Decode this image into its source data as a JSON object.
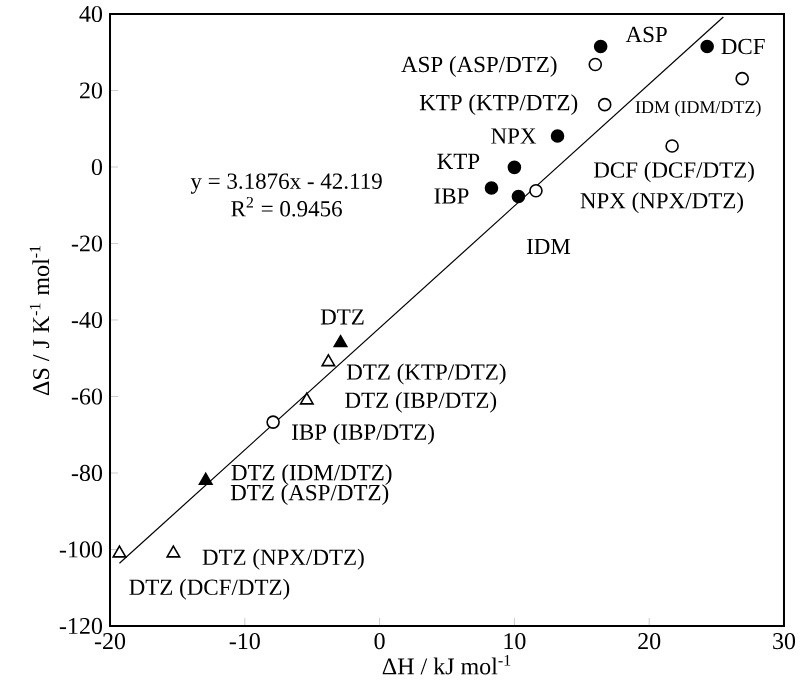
{
  "chart_data": {
    "type": "scatter",
    "xlabel": "ΔH / kJ mol$^{-1}$",
    "ylabel": "ΔS / J K$^{-1}$ mol$^{-1}$",
    "xlim": [
      -20,
      30
    ],
    "ylim": [
      -120,
      40
    ],
    "xticks": [
      -20,
      -10,
      0,
      10,
      20,
      30
    ],
    "yticks": [
      -120,
      -100,
      -80,
      -60,
      -40,
      -20,
      0,
      20,
      40
    ],
    "series": [
      {
        "marker": "circle",
        "color": "#000000",
        "x": [
          16.4,
          24.3,
          13.2,
          10.0,
          8.3,
          10.3
        ],
        "values": [
          31.5,
          31.5,
          8.1,
          -0.1,
          -5.5,
          -7.7
        ]
      },
      {
        "marker": "circle",
        "color": "#ffffff",
        "x": [
          16.0,
          26.9,
          16.7,
          21.7,
          11.6,
          -7.9
        ],
        "values": [
          26.8,
          23.1,
          16.3,
          5.5,
          -6.2,
          -66.7
        ]
      },
      {
        "marker": "triangle",
        "color": "#000000",
        "x": [
          -2.9,
          -12.9
        ],
        "values": [
          -46,
          -82
        ]
      },
      {
        "marker": "triangle",
        "color": "#ffffff",
        "x": [
          -3.8,
          -5.4,
          -15.3,
          -19.3
        ],
        "values": [
          -51,
          -61,
          -101,
          -101
        ]
      },
      {
        "type": "line",
        "marker": "none",
        "color": "#000000",
        "x": [
          -19.3,
          25.5
        ],
        "values": [
          -103.6,
          39.2
        ]
      }
    ],
    "annotations": [
      {
        "text": "ASP",
        "x": 16.4,
        "y": 31.5
      },
      {
        "text": "DCF",
        "x": 24.3,
        "y": 31.5
      },
      {
        "text": "ASP (ASP/DTZ)",
        "x": 16.0,
        "y": 26.8
      },
      {
        "text": "KTP (KTP/DTZ)",
        "x": 16.7,
        "y": 16.3
      },
      {
        "text": "IDM (IDM/DTZ)",
        "x": 26.9,
        "y": 23.1
      },
      {
        "text": "NPX",
        "x": 13.2,
        "y": 8.1
      },
      {
        "text": "KTP",
        "x": 10.0,
        "y": -0.1
      },
      {
        "text": "DCF (DCF/DTZ)",
        "x": 21.7,
        "y": 5.5
      },
      {
        "text": "IBP",
        "x": 8.3,
        "y": -5.5
      },
      {
        "text": "NPX (NPX/DTZ)",
        "x": 11.6,
        "y": -6.2
      },
      {
        "text": "IDM",
        "x": 10.3,
        "y": -7.7
      },
      "y = 3.1876x - 42.119",
      "R$^{2}$ = 0.9456",
      {
        "text": "DTZ",
        "x": -2.9,
        "y": -46
      },
      {
        "text": "DTZ (KTP/DTZ)",
        "x": -3.8,
        "y": -51
      },
      {
        "text": "DTZ (IBP/DTZ)",
        "x": -5.4,
        "y": -61
      },
      {
        "text": "IBP (IBP/DTZ)",
        "x": -7.9,
        "y": -66.7
      },
      {
        "text": "DTZ (IDM/DTZ)",
        "x": -12.9,
        "y": -82
      },
      {
        "text": "DTZ (ASP/DTZ)",
        "x": -12.9,
        "y": -82
      },
      {
        "text": "DTZ (NPX/DTZ)",
        "x": -15.3,
        "y": -101
      },
      {
        "text": "DTZ (DCF/DTZ)",
        "x": -19.3,
        "y": -101
      }
    ]
  }
}
